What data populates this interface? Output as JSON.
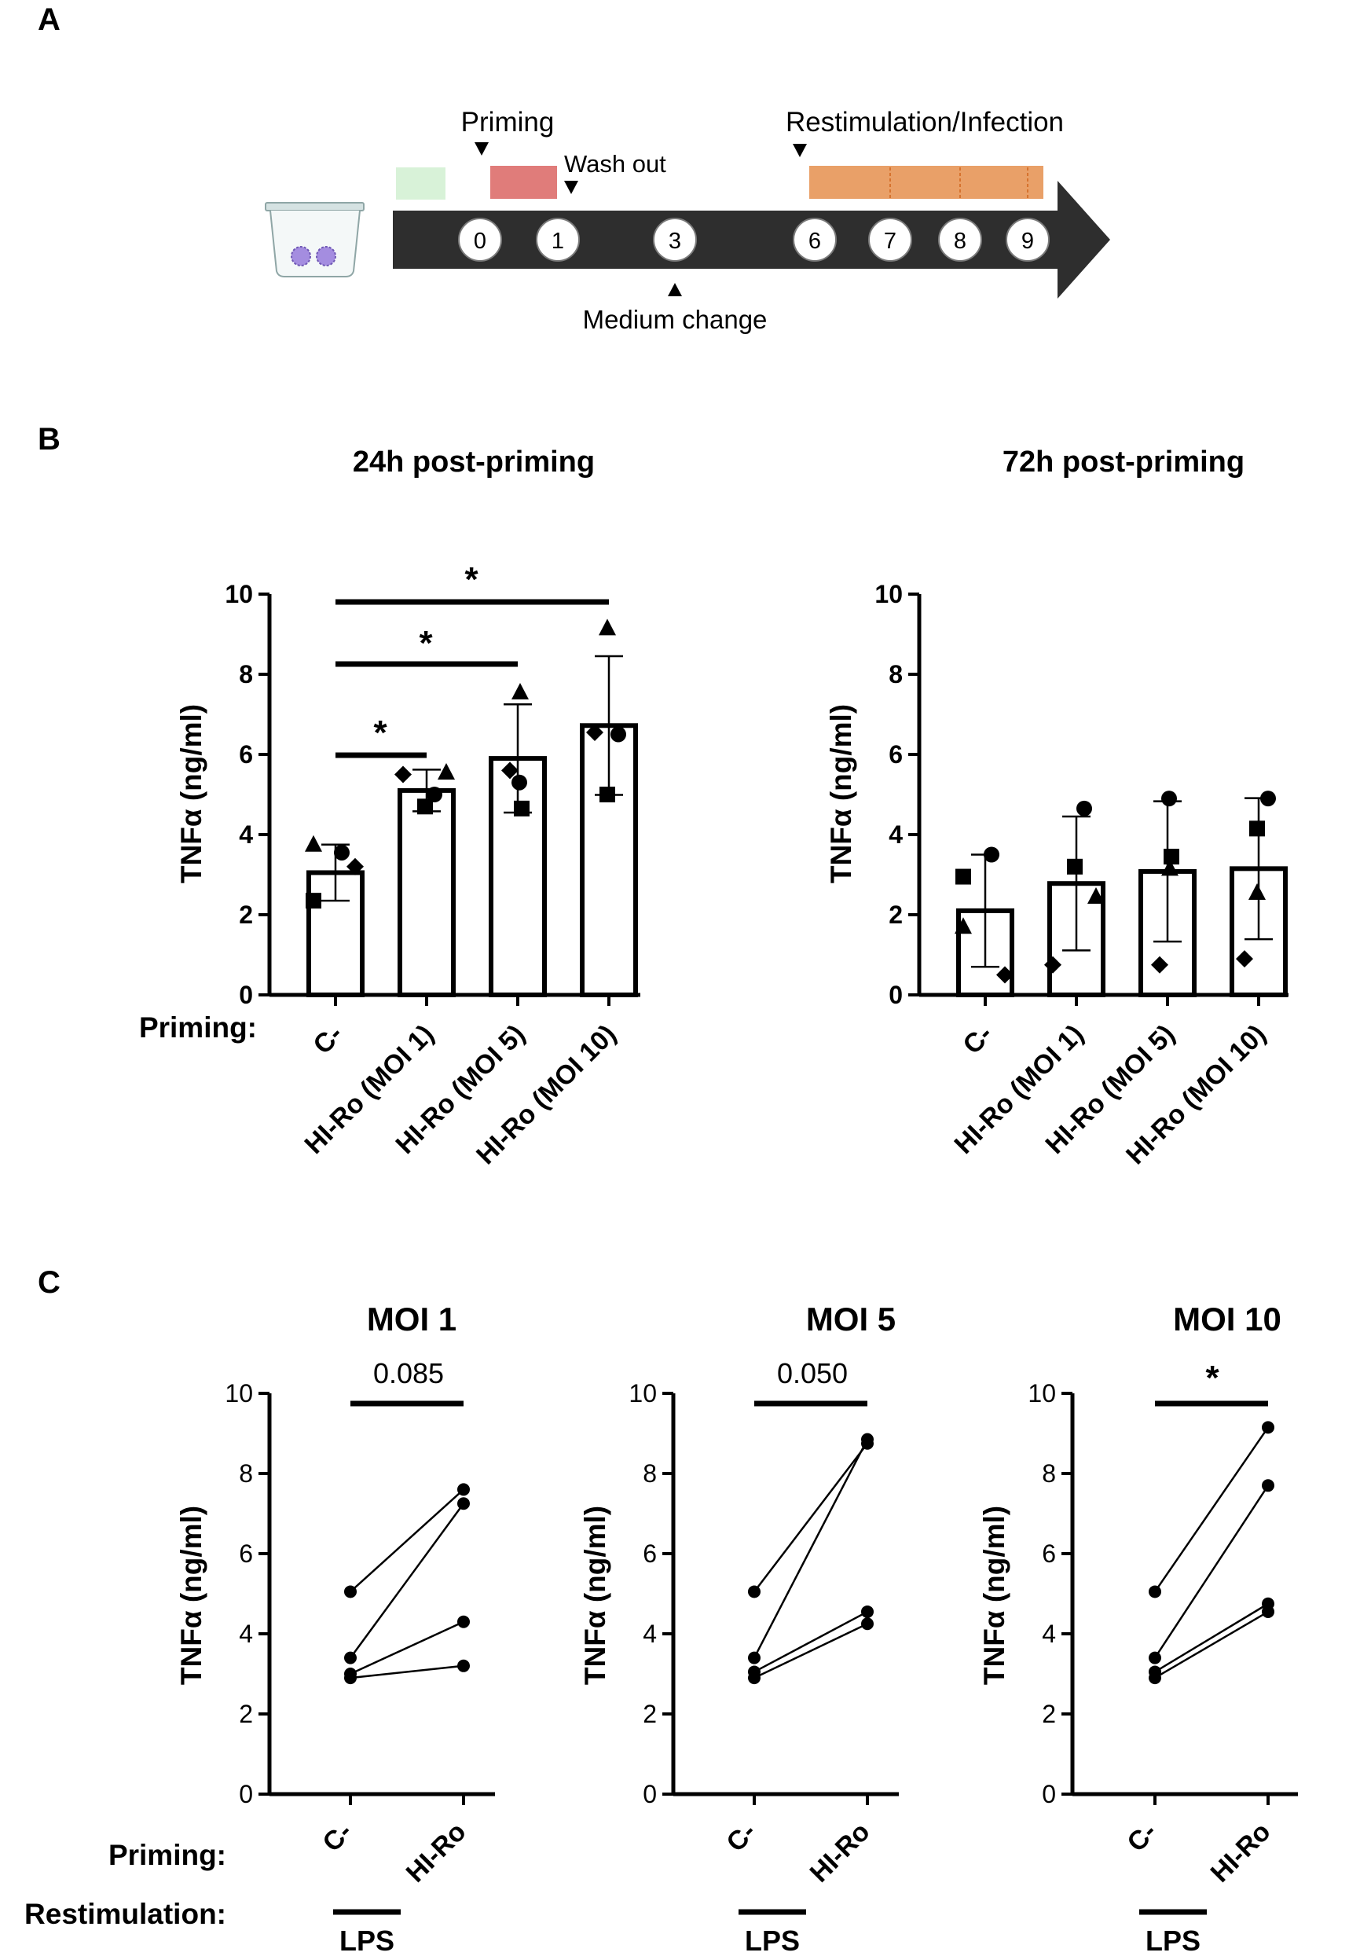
{
  "panel_labels": {
    "a": "A",
    "b": "B",
    "c": "C"
  },
  "timeline": {
    "priming_label": "Priming",
    "wash_label": "Wash out",
    "restim_label": "Restimulation/Infection",
    "medium_label": "Medium change",
    "days": [
      "0",
      "1",
      "3",
      "6",
      "7",
      "8",
      "9"
    ],
    "colors": {
      "pre": "#d8f2d8",
      "priming": "#e07c7a",
      "restim": "#e9a068",
      "arrow": "#2e2e2e"
    }
  },
  "panel_b": {
    "priming_label": "Priming:",
    "ylabel": "TNFα (ng/ml)",
    "yticks": [
      "0",
      "2",
      "4",
      "6",
      "8",
      "10"
    ],
    "categories": [
      "C-",
      "HI-Ro (MOI 1)",
      "HI-Ro (MOI 5)",
      "HI-Ro (MOI 10)"
    ]
  },
  "panel_c": {
    "ylabel": "TNFα (ng/ml)",
    "yticks": [
      "0",
      "2",
      "4",
      "6",
      "8",
      "10"
    ],
    "categories": [
      "C-",
      "HI-Ro"
    ],
    "priming_label": "Priming:",
    "restim_label": "Restimulation:",
    "lps_label": "LPS"
  },
  "chart_data": [
    {
      "type": "bar",
      "title": "24h post-priming",
      "ylabel": "TNFα (ng/ml)",
      "ylim": [
        0,
        10
      ],
      "categories": [
        "C-",
        "HI-Ro (MOI 1)",
        "HI-Ro (MOI 5)",
        "HI-Ro (MOI 10)"
      ],
      "values": [
        3.05,
        5.1,
        5.9,
        6.72
      ],
      "sd": [
        0.7,
        0.52,
        1.35,
        1.73
      ],
      "points": {
        "circle": [
          3.55,
          5.0,
          5.3,
          6.5
        ],
        "square": [
          2.35,
          4.7,
          4.65,
          5.0
        ],
        "triangle": [
          3.75,
          5.55,
          7.55,
          9.15
        ],
        "diamond": [
          3.2,
          5.5,
          5.6,
          6.55
        ]
      },
      "significance": [
        {
          "from": 0,
          "to": 1,
          "label": "*"
        },
        {
          "from": 0,
          "to": 2,
          "label": "*"
        },
        {
          "from": 0,
          "to": 3,
          "label": "*"
        }
      ]
    },
    {
      "type": "bar",
      "title": "72h post-priming",
      "ylabel": "TNFα (ng/ml)",
      "ylim": [
        0,
        10
      ],
      "categories": [
        "C-",
        "HI-Ro (MOI 1)",
        "HI-Ro (MOI 5)",
        "HI-Ro (MOI 10)"
      ],
      "values": [
        2.1,
        2.78,
        3.08,
        3.15
      ],
      "sd": [
        1.4,
        1.67,
        1.75,
        1.76
      ],
      "points": {
        "circle": [
          3.5,
          4.65,
          4.9,
          4.9
        ],
        "square": [
          2.95,
          3.2,
          3.45,
          4.15
        ],
        "triangle": [
          1.7,
          2.45,
          3.15,
          2.55
        ],
        "diamond": [
          0.5,
          0.75,
          0.75,
          0.9
        ]
      },
      "significance": []
    },
    {
      "type": "line",
      "title": "MOI 1",
      "ylabel": "TNFα (ng/ml)",
      "ylim": [
        0,
        10
      ],
      "categories": [
        "C-",
        "HI-Ro"
      ],
      "pairs": [
        [
          5.05,
          7.6
        ],
        [
          3.4,
          7.25
        ],
        [
          3.0,
          4.3
        ],
        [
          2.9,
          3.2
        ]
      ],
      "annotation": "0.085"
    },
    {
      "type": "line",
      "title": "MOI 5",
      "ylabel": "TNFα (ng/ml)",
      "ylim": [
        0,
        10
      ],
      "categories": [
        "C-",
        "HI-Ro"
      ],
      "pairs": [
        [
          5.05,
          8.75
        ],
        [
          3.4,
          8.85
        ],
        [
          3.05,
          4.55
        ],
        [
          2.9,
          4.25
        ]
      ],
      "annotation": "0.050"
    },
    {
      "type": "line",
      "title": "MOI 10",
      "ylabel": "TNFα (ng/ml)",
      "ylim": [
        0,
        10
      ],
      "categories": [
        "C-",
        "HI-Ro"
      ],
      "pairs": [
        [
          5.05,
          9.15
        ],
        [
          3.4,
          7.7
        ],
        [
          3.05,
          4.75
        ],
        [
          2.9,
          4.55
        ]
      ],
      "annotation": "*"
    }
  ]
}
